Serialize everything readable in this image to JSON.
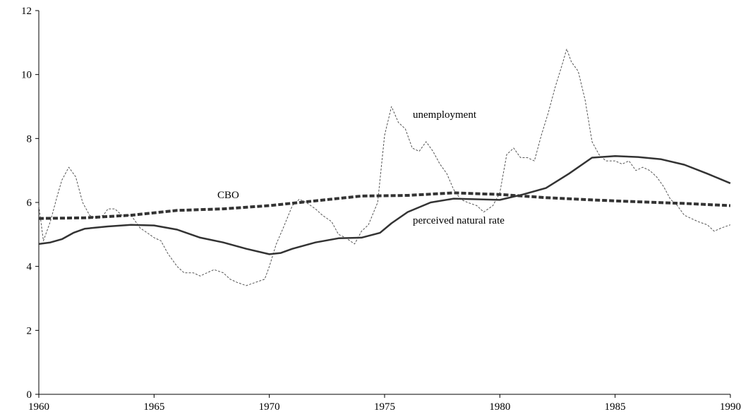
{
  "chart_data": {
    "type": "line",
    "title": "",
    "xlabel": "",
    "ylabel": "",
    "xlim": [
      1960,
      1990
    ],
    "ylim": [
      0,
      12
    ],
    "xticks": [
      1960,
      1965,
      1970,
      1975,
      1980,
      1985,
      1990
    ],
    "yticks": [
      0,
      2,
      4,
      6,
      8,
      10,
      12
    ],
    "grid": false,
    "legend": "none",
    "annotations": [
      {
        "text": "unemployment",
        "series": "unemployment"
      },
      {
        "text": "CBO",
        "series": "CBO"
      },
      {
        "text": "perceived natural rate",
        "series": "perceived natural rate"
      }
    ],
    "series": [
      {
        "name": "unemployment",
        "style": "thin-dashed",
        "color": "#555555",
        "points": [
          [
            1960.0,
            5.9
          ],
          [
            1960.2,
            4.8
          ],
          [
            1960.5,
            5.4
          ],
          [
            1960.8,
            6.2
          ],
          [
            1961.0,
            6.7
          ],
          [
            1961.3,
            7.1
          ],
          [
            1961.6,
            6.8
          ],
          [
            1961.9,
            6.0
          ],
          [
            1962.2,
            5.6
          ],
          [
            1962.5,
            5.5
          ],
          [
            1962.8,
            5.6
          ],
          [
            1963.0,
            5.8
          ],
          [
            1963.3,
            5.8
          ],
          [
            1963.6,
            5.6
          ],
          [
            1964.0,
            5.6
          ],
          [
            1964.4,
            5.2
          ],
          [
            1964.8,
            5.0
          ],
          [
            1965.0,
            4.9
          ],
          [
            1965.3,
            4.8
          ],
          [
            1965.6,
            4.4
          ],
          [
            1966.0,
            4.0
          ],
          [
            1966.3,
            3.8
          ],
          [
            1966.7,
            3.8
          ],
          [
            1967.0,
            3.7
          ],
          [
            1967.3,
            3.8
          ],
          [
            1967.6,
            3.9
          ],
          [
            1968.0,
            3.8
          ],
          [
            1968.3,
            3.6
          ],
          [
            1968.6,
            3.5
          ],
          [
            1969.0,
            3.4
          ],
          [
            1969.4,
            3.5
          ],
          [
            1969.8,
            3.6
          ],
          [
            1970.0,
            4.0
          ],
          [
            1970.3,
            4.7
          ],
          [
            1970.6,
            5.2
          ],
          [
            1971.0,
            5.9
          ],
          [
            1971.3,
            6.1
          ],
          [
            1971.6,
            6.0
          ],
          [
            1972.0,
            5.8
          ],
          [
            1972.3,
            5.6
          ],
          [
            1972.7,
            5.4
          ],
          [
            1973.0,
            5.0
          ],
          [
            1973.3,
            4.9
          ],
          [
            1973.7,
            4.7
          ],
          [
            1974.0,
            5.1
          ],
          [
            1974.3,
            5.3
          ],
          [
            1974.7,
            6.0
          ],
          [
            1975.0,
            8.1
          ],
          [
            1975.3,
            9.0
          ],
          [
            1975.6,
            8.5
          ],
          [
            1975.9,
            8.3
          ],
          [
            1976.2,
            7.7
          ],
          [
            1976.5,
            7.6
          ],
          [
            1976.8,
            7.9
          ],
          [
            1977.1,
            7.6
          ],
          [
            1977.4,
            7.2
          ],
          [
            1977.7,
            6.9
          ],
          [
            1978.0,
            6.4
          ],
          [
            1978.3,
            6.1
          ],
          [
            1978.6,
            6.0
          ],
          [
            1979.0,
            5.9
          ],
          [
            1979.3,
            5.7
          ],
          [
            1979.7,
            5.9
          ],
          [
            1980.0,
            6.3
          ],
          [
            1980.3,
            7.5
          ],
          [
            1980.6,
            7.7
          ],
          [
            1980.9,
            7.4
          ],
          [
            1981.2,
            7.4
          ],
          [
            1981.5,
            7.3
          ],
          [
            1981.8,
            8.1
          ],
          [
            1982.1,
            8.8
          ],
          [
            1982.4,
            9.6
          ],
          [
            1982.7,
            10.3
          ],
          [
            1982.9,
            10.8
          ],
          [
            1983.1,
            10.4
          ],
          [
            1983.4,
            10.1
          ],
          [
            1983.7,
            9.2
          ],
          [
            1984.0,
            7.9
          ],
          [
            1984.3,
            7.5
          ],
          [
            1984.6,
            7.3
          ],
          [
            1985.0,
            7.3
          ],
          [
            1985.3,
            7.2
          ],
          [
            1985.6,
            7.3
          ],
          [
            1985.9,
            7.0
          ],
          [
            1986.2,
            7.1
          ],
          [
            1986.5,
            7.0
          ],
          [
            1986.8,
            6.8
          ],
          [
            1987.1,
            6.5
          ],
          [
            1987.4,
            6.1
          ],
          [
            1987.7,
            5.9
          ],
          [
            1988.0,
            5.6
          ],
          [
            1988.3,
            5.5
          ],
          [
            1988.6,
            5.4
          ],
          [
            1989.0,
            5.3
          ],
          [
            1989.3,
            5.1
          ],
          [
            1989.6,
            5.2
          ],
          [
            1990.0,
            5.3
          ]
        ]
      },
      {
        "name": "CBO",
        "style": "thick-dashed",
        "color": "#333333",
        "points": [
          [
            1960.0,
            5.5
          ],
          [
            1962.0,
            5.52
          ],
          [
            1964.0,
            5.6
          ],
          [
            1966.0,
            5.75
          ],
          [
            1968.0,
            5.8
          ],
          [
            1970.0,
            5.9
          ],
          [
            1972.0,
            6.05
          ],
          [
            1974.0,
            6.2
          ],
          [
            1976.0,
            6.22
          ],
          [
            1978.0,
            6.3
          ],
          [
            1980.0,
            6.25
          ],
          [
            1982.0,
            6.15
          ],
          [
            1984.0,
            6.08
          ],
          [
            1986.0,
            6.02
          ],
          [
            1988.0,
            5.97
          ],
          [
            1990.0,
            5.9
          ]
        ]
      },
      {
        "name": "perceived natural rate",
        "style": "solid",
        "color": "#333333",
        "points": [
          [
            1960.0,
            4.7
          ],
          [
            1960.5,
            4.75
          ],
          [
            1961.0,
            4.85
          ],
          [
            1961.5,
            5.05
          ],
          [
            1962.0,
            5.18
          ],
          [
            1963.0,
            5.25
          ],
          [
            1964.0,
            5.3
          ],
          [
            1965.0,
            5.28
          ],
          [
            1966.0,
            5.15
          ],
          [
            1967.0,
            4.9
          ],
          [
            1968.0,
            4.75
          ],
          [
            1969.0,
            4.55
          ],
          [
            1970.0,
            4.38
          ],
          [
            1970.5,
            4.42
          ],
          [
            1971.0,
            4.55
          ],
          [
            1972.0,
            4.75
          ],
          [
            1973.0,
            4.88
          ],
          [
            1974.0,
            4.9
          ],
          [
            1974.8,
            5.05
          ],
          [
            1975.3,
            5.35
          ],
          [
            1976.0,
            5.7
          ],
          [
            1977.0,
            6.0
          ],
          [
            1978.0,
            6.12
          ],
          [
            1979.0,
            6.1
          ],
          [
            1980.0,
            6.08
          ],
          [
            1981.0,
            6.25
          ],
          [
            1982.0,
            6.45
          ],
          [
            1983.0,
            6.9
          ],
          [
            1984.0,
            7.4
          ],
          [
            1985.0,
            7.45
          ],
          [
            1986.0,
            7.42
          ],
          [
            1987.0,
            7.35
          ],
          [
            1988.0,
            7.18
          ],
          [
            1989.0,
            6.9
          ],
          [
            1990.0,
            6.6
          ]
        ]
      }
    ]
  }
}
